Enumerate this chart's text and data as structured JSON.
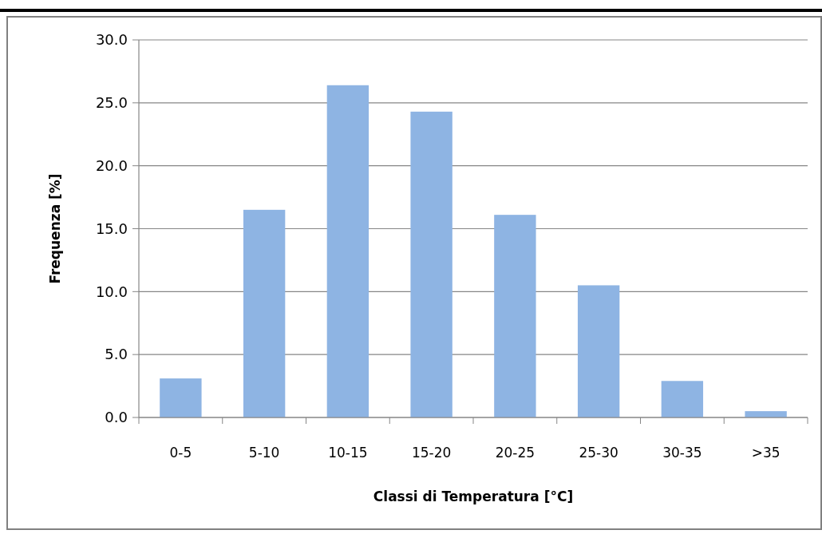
{
  "chart_data": {
    "type": "bar",
    "xlabel": "Classi di Temperatura [°C]",
    "ylabel": "Frequenza [%]",
    "categories": [
      "0-5",
      "5-10",
      "10-15",
      "15-20",
      "20-25",
      "25-30",
      "30-35",
      ">35"
    ],
    "values": [
      3.1,
      16.5,
      26.4,
      24.3,
      16.1,
      10.5,
      2.9,
      0.5
    ],
    "color": "#8eb4e3",
    "ylim": [
      0,
      30
    ],
    "yticks": [
      {
        "value": 0,
        "label": "0.0"
      },
      {
        "value": 5,
        "label": "5.0"
      },
      {
        "value": 10,
        "label": "10.0"
      },
      {
        "value": 15,
        "label": "15.0"
      },
      {
        "value": 20,
        "label": "20.0"
      },
      {
        "value": 25,
        "label": "25.0"
      },
      {
        "value": 30,
        "label": "30.0"
      }
    ],
    "grid": "y"
  }
}
